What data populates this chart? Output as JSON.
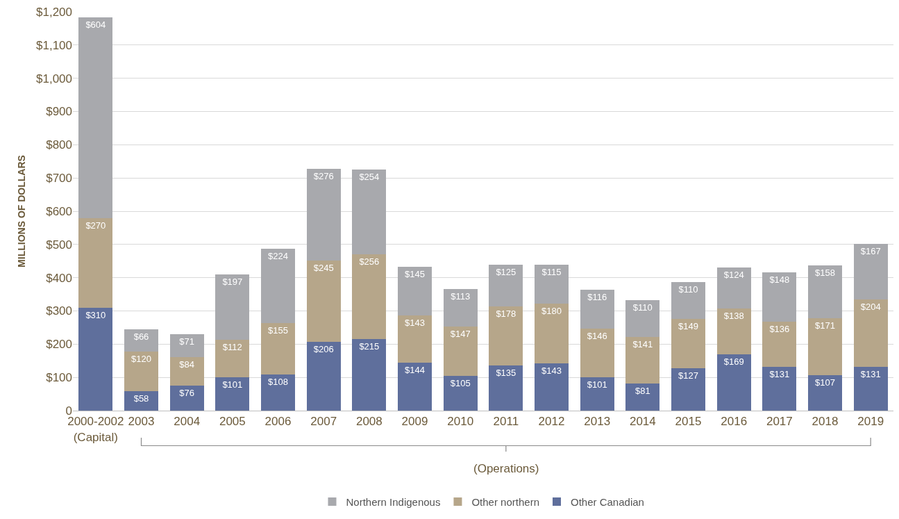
{
  "chart_data": {
    "type": "bar",
    "stacked": true,
    "ylabel": "MILLIONS OF DOLLARS",
    "categories": [
      "2000-2002\n(Capital)",
      "2003",
      "2004",
      "2005",
      "2006",
      "2007",
      "2008",
      "2009",
      "2010",
      "2011",
      "2012",
      "2013",
      "2014",
      "2015",
      "2016",
      "2017",
      "2018",
      "2019"
    ],
    "series": [
      {
        "name": "Other Canadian",
        "color": "#5f6f9c",
        "values": [
          310,
          58,
          76,
          101,
          108,
          206,
          215,
          144,
          105,
          135,
          143,
          101,
          81,
          127,
          169,
          131,
          107,
          131
        ],
        "value_labels": [
          "$310",
          "$58",
          "$76",
          "$101",
          "$108",
          "$206",
          "$215",
          "$144",
          "$105",
          "$135",
          "$143",
          "$101",
          "$81",
          "$127",
          "$169",
          "$131",
          "$107",
          "$131"
        ]
      },
      {
        "name": "Other northern",
        "color": "#b6a68a",
        "values": [
          270,
          120,
          84,
          112,
          155,
          245,
          256,
          143,
          147,
          178,
          180,
          146,
          141,
          149,
          138,
          136,
          171,
          204
        ],
        "value_labels": [
          "$270",
          "$120",
          "$84",
          "$112",
          "$155",
          "$245",
          "$256",
          "$143",
          "$147",
          "$178",
          "$180",
          "$146",
          "$141",
          "$149",
          "$138",
          "$136",
          "$171",
          "$204"
        ]
      },
      {
        "name": "Northern Indigenous",
        "color": "#a8a9ad",
        "values": [
          604,
          66,
          71,
          197,
          224,
          276,
          254,
          145,
          113,
          125,
          115,
          116,
          110,
          110,
          124,
          148,
          158,
          167
        ],
        "value_labels": [
          "$604",
          "$66",
          "$71",
          "$197",
          "$224",
          "$276",
          "$254",
          "$145",
          "$113",
          "$125",
          "$115",
          "$116",
          "$110",
          "$110",
          "$124",
          "$148",
          "$158",
          "$167"
        ]
      }
    ],
    "ylim": [
      0,
      1200
    ],
    "yticks": [
      0,
      {
        "value": 100,
        "label": "$100"
      },
      {
        "value": 200,
        "label": "$200"
      },
      {
        "value": 300,
        "label": "$300"
      },
      {
        "value": 400,
        "label": "$400"
      },
      {
        "value": 500,
        "label": "$500"
      },
      {
        "value": 600,
        "label": "$600"
      },
      {
        "value": 700,
        "label": "$700"
      },
      {
        "value": 800,
        "label": "$800"
      },
      {
        "value": 900,
        "label": "$900"
      },
      {
        "value": 1000,
        "label": "$1,000"
      },
      {
        "value": 1100,
        "label": "$1,100"
      },
      {
        "value": 1200,
        "label": "$1,200"
      }
    ],
    "grid": "y",
    "legend": "bottom",
    "annotations": [
      "(Operations)"
    ]
  }
}
